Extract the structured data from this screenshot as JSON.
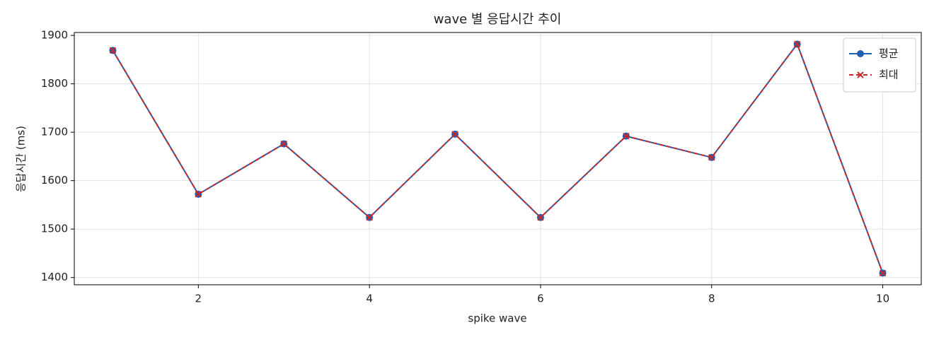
{
  "chart_data": {
    "type": "line",
    "title": "wave 별 응답시간 추이",
    "x_label": "spike wave",
    "y_label": "응답시간 (ms)",
    "x": [
      1,
      2,
      3,
      4,
      5,
      6,
      7,
      8,
      9,
      10
    ],
    "series": [
      {
        "name": "평균",
        "color": "#1f5fb4",
        "marker": "o",
        "dash": false,
        "values": [
          1869,
          1572,
          1676,
          1524,
          1696,
          1524,
          1692,
          1648,
          1882,
          1409
        ]
      },
      {
        "name": "최대",
        "color": "#c62828",
        "marker": "x",
        "dash": true,
        "values": [
          1869,
          1572,
          1676,
          1524,
          1696,
          1524,
          1692,
          1648,
          1882,
          1409
        ]
      }
    ],
    "xlim": [
      0.55,
      10.45
    ],
    "ylim": [
      1385,
      1906
    ],
    "xticks": [
      2,
      4,
      6,
      8,
      10
    ],
    "yticks": [
      1400,
      1500,
      1600,
      1700,
      1800,
      1900
    ],
    "grid": true,
    "legend": "upper right"
  }
}
